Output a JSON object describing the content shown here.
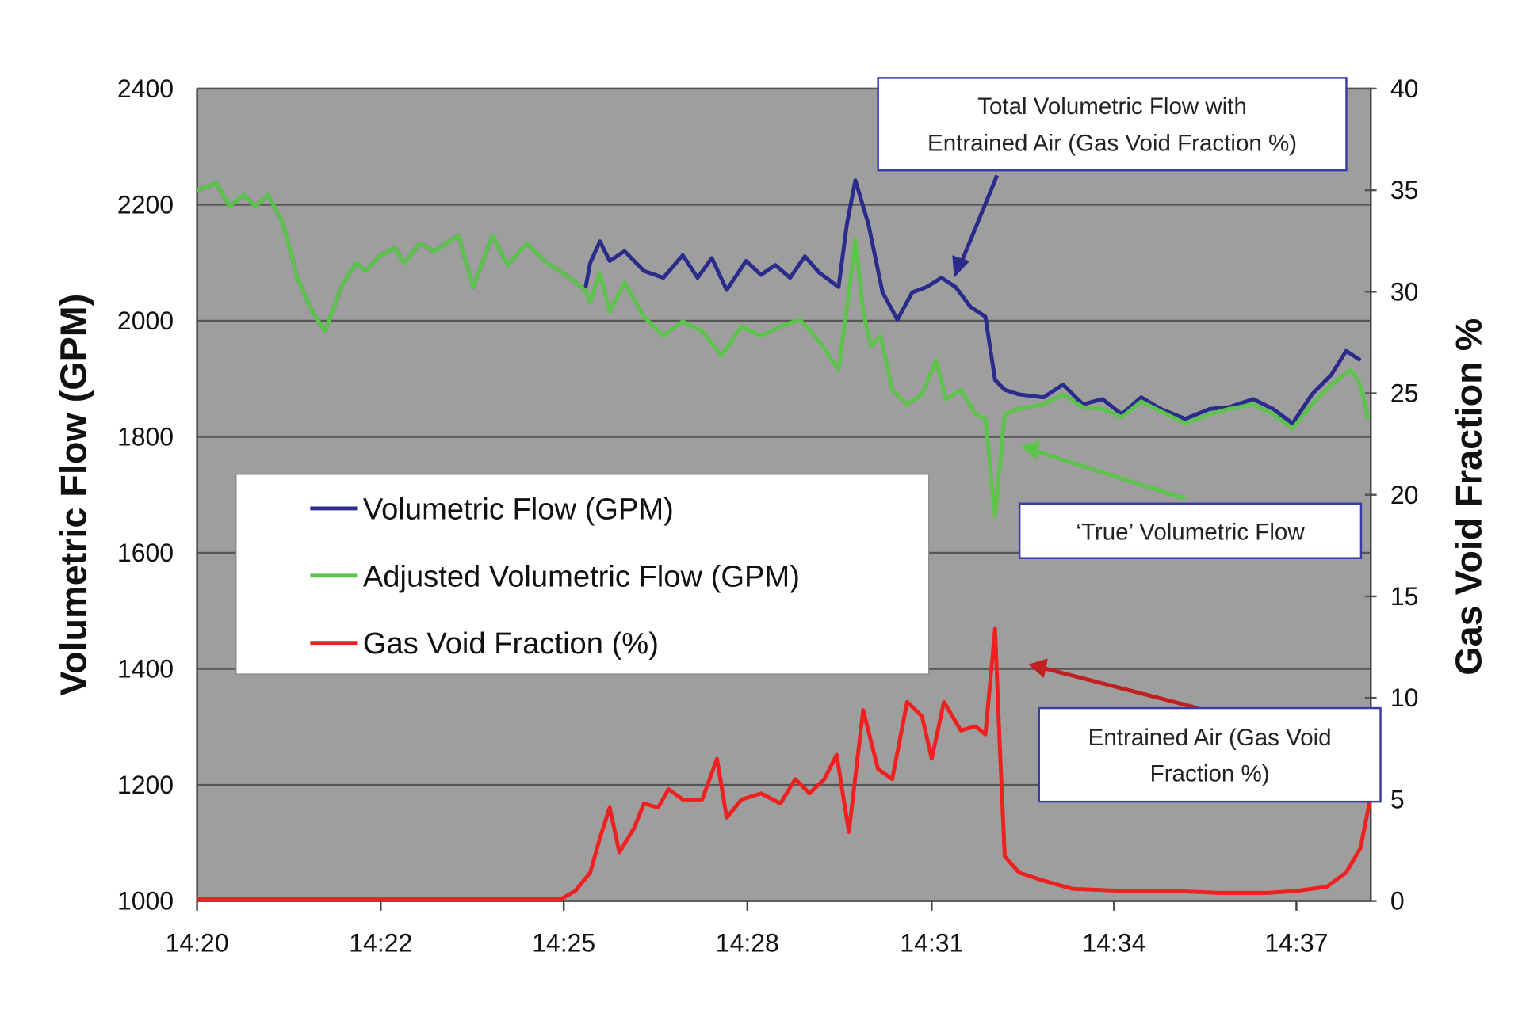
{
  "chart_data": {
    "type": "line",
    "title": "",
    "xlabel": "",
    "ylabel": "Volumetric Flow (GPM)",
    "y2label": "Gas Void Fraction %",
    "x_unit": "minutes after 14:20",
    "xlim": [
      0,
      18.15
    ],
    "ylim": [
      1000,
      2400
    ],
    "y2lim": [
      0,
      40
    ],
    "grid": true,
    "x_ticks": [
      {
        "value": 0,
        "label": "14:20"
      },
      {
        "value": 2.84,
        "label": "14:22"
      },
      {
        "value": 5.67,
        "label": "14:25"
      },
      {
        "value": 8.51,
        "label": "14:28"
      },
      {
        "value": 11.36,
        "label": "14:31"
      },
      {
        "value": 14.18,
        "label": "14:34"
      },
      {
        "value": 17.0,
        "label": "14:37"
      }
    ],
    "y_ticks": [
      "1000",
      "1200",
      "1400",
      "1600",
      "1800",
      "2000",
      "2200",
      "2400"
    ],
    "y2_ticks": [
      "0",
      "5",
      "10",
      "15",
      "20",
      "25",
      "30",
      "35",
      "40"
    ],
    "legend": {
      "placement": "center-left",
      "entries": [
        "Volumetric Flow (GPM)",
        "Adjusted Volumetric Flow (GPM)",
        "Gas Void Fraction (%)"
      ]
    },
    "series": [
      {
        "name": "Volumetric Flow (GPM)",
        "axis": "left",
        "color": "#2b2b8c",
        "points": [
          [
            0,
            2225
          ],
          [
            0.3,
            2237
          ],
          [
            0.5,
            2197
          ],
          [
            0.72,
            2217
          ],
          [
            0.9,
            2197
          ],
          [
            1.1,
            2217
          ],
          [
            1.33,
            2167
          ],
          [
            1.55,
            2074
          ],
          [
            1.78,
            2016
          ],
          [
            1.98,
            1982
          ],
          [
            2.23,
            2058
          ],
          [
            2.46,
            2100
          ],
          [
            2.61,
            2086
          ],
          [
            2.84,
            2113
          ],
          [
            3.06,
            2125
          ],
          [
            3.21,
            2100
          ],
          [
            3.44,
            2133
          ],
          [
            3.67,
            2120
          ],
          [
            4.04,
            2147
          ],
          [
            4.27,
            2058
          ],
          [
            4.57,
            2147
          ],
          [
            4.8,
            2096
          ],
          [
            5.1,
            2133
          ],
          [
            5.4,
            2100
          ],
          [
            5.7,
            2079
          ],
          [
            6.0,
            2053
          ],
          [
            6.08,
            2100
          ],
          [
            6.23,
            2137
          ],
          [
            6.38,
            2103
          ],
          [
            6.61,
            2120
          ],
          [
            6.91,
            2086
          ],
          [
            7.21,
            2074
          ],
          [
            7.51,
            2113
          ],
          [
            7.74,
            2074
          ],
          [
            7.96,
            2108
          ],
          [
            8.19,
            2053
          ],
          [
            8.49,
            2103
          ],
          [
            8.72,
            2079
          ],
          [
            8.94,
            2096
          ],
          [
            9.17,
            2074
          ],
          [
            9.4,
            2111
          ],
          [
            9.62,
            2083
          ],
          [
            9.92,
            2058
          ],
          [
            10.05,
            2167
          ],
          [
            10.18,
            2242
          ],
          [
            10.38,
            2167
          ],
          [
            10.6,
            2049
          ],
          [
            10.83,
            2002
          ],
          [
            11.06,
            2049
          ],
          [
            11.28,
            2058
          ],
          [
            11.51,
            2074
          ],
          [
            11.73,
            2058
          ],
          [
            11.96,
            2024
          ],
          [
            12.19,
            2007
          ],
          [
            12.34,
            1898
          ],
          [
            12.49,
            1881
          ],
          [
            12.71,
            1873
          ],
          [
            13.09,
            1868
          ],
          [
            13.39,
            1890
          ],
          [
            13.7,
            1856
          ],
          [
            14.0,
            1865
          ],
          [
            14.3,
            1839
          ],
          [
            14.6,
            1868
          ],
          [
            14.9,
            1848
          ],
          [
            15.28,
            1831
          ],
          [
            15.66,
            1848
          ],
          [
            15.96,
            1851
          ],
          [
            16.33,
            1865
          ],
          [
            16.64,
            1848
          ],
          [
            16.94,
            1823
          ],
          [
            17.24,
            1873
          ],
          [
            17.54,
            1907
          ],
          [
            17.77,
            1948
          ],
          [
            17.99,
            1932
          ]
        ]
      },
      {
        "name": "Adjusted Volumetric Flow (GPM)",
        "axis": "left",
        "color": "#5cc44a",
        "points": [
          [
            0,
            2225
          ],
          [
            0.3,
            2237
          ],
          [
            0.5,
            2197
          ],
          [
            0.72,
            2217
          ],
          [
            0.9,
            2197
          ],
          [
            1.1,
            2217
          ],
          [
            1.33,
            2167
          ],
          [
            1.55,
            2074
          ],
          [
            1.78,
            2016
          ],
          [
            1.98,
            1982
          ],
          [
            2.23,
            2058
          ],
          [
            2.46,
            2100
          ],
          [
            2.61,
            2086
          ],
          [
            2.84,
            2113
          ],
          [
            3.06,
            2125
          ],
          [
            3.21,
            2100
          ],
          [
            3.44,
            2133
          ],
          [
            3.67,
            2120
          ],
          [
            4.04,
            2147
          ],
          [
            4.27,
            2058
          ],
          [
            4.57,
            2147
          ],
          [
            4.8,
            2096
          ],
          [
            5.1,
            2133
          ],
          [
            5.4,
            2100
          ],
          [
            5.7,
            2079
          ],
          [
            6.0,
            2053
          ],
          [
            6.08,
            2032
          ],
          [
            6.23,
            2083
          ],
          [
            6.38,
            2016
          ],
          [
            6.61,
            2066
          ],
          [
            6.91,
            2007
          ],
          [
            7.21,
            1974
          ],
          [
            7.51,
            1999
          ],
          [
            7.81,
            1982
          ],
          [
            8.11,
            1940
          ],
          [
            8.42,
            1990
          ],
          [
            8.72,
            1974
          ],
          [
            9.02,
            1990
          ],
          [
            9.32,
            2002
          ],
          [
            9.62,
            1965
          ],
          [
            9.92,
            1915
          ],
          [
            10.08,
            2049
          ],
          [
            10.18,
            2141
          ],
          [
            10.3,
            2016
          ],
          [
            10.42,
            1957
          ],
          [
            10.57,
            1974
          ],
          [
            10.75,
            1881
          ],
          [
            10.98,
            1856
          ],
          [
            11.21,
            1873
          ],
          [
            11.43,
            1932
          ],
          [
            11.58,
            1865
          ],
          [
            11.81,
            1881
          ],
          [
            12.04,
            1839
          ],
          [
            12.19,
            1831
          ],
          [
            12.34,
            1663
          ],
          [
            12.49,
            1839
          ],
          [
            12.71,
            1848
          ],
          [
            13.09,
            1856
          ],
          [
            13.39,
            1873
          ],
          [
            13.7,
            1851
          ],
          [
            14.0,
            1848
          ],
          [
            14.3,
            1834
          ],
          [
            14.6,
            1861
          ],
          [
            14.9,
            1844
          ],
          [
            15.28,
            1823
          ],
          [
            15.66,
            1839
          ],
          [
            15.96,
            1848
          ],
          [
            16.33,
            1856
          ],
          [
            16.64,
            1839
          ],
          [
            16.94,
            1814
          ],
          [
            17.24,
            1856
          ],
          [
            17.54,
            1890
          ],
          [
            17.84,
            1915
          ],
          [
            17.99,
            1890
          ],
          [
            18.11,
            1831
          ]
        ]
      },
      {
        "name": "Gas Void Fraction (%)",
        "axis": "right",
        "color": "#ee2020",
        "points": [
          [
            0,
            0.1
          ],
          [
            5.63,
            0.1
          ],
          [
            5.85,
            0.5
          ],
          [
            6.08,
            1.4
          ],
          [
            6.23,
            3.1
          ],
          [
            6.38,
            4.6
          ],
          [
            6.53,
            2.4
          ],
          [
            6.76,
            3.6
          ],
          [
            6.91,
            4.8
          ],
          [
            7.13,
            4.6
          ],
          [
            7.29,
            5.5
          ],
          [
            7.51,
            5.0
          ],
          [
            7.81,
            5.0
          ],
          [
            8.04,
            7.0
          ],
          [
            8.19,
            4.1
          ],
          [
            8.42,
            5.0
          ],
          [
            8.72,
            5.3
          ],
          [
            9.02,
            4.8
          ],
          [
            9.25,
            6.0
          ],
          [
            9.47,
            5.3
          ],
          [
            9.7,
            6.0
          ],
          [
            9.89,
            7.2
          ],
          [
            10.08,
            3.4
          ],
          [
            10.3,
            9.4
          ],
          [
            10.53,
            6.5
          ],
          [
            10.75,
            6.0
          ],
          [
            10.98,
            9.8
          ],
          [
            11.21,
            9.1
          ],
          [
            11.36,
            7.0
          ],
          [
            11.55,
            9.8
          ],
          [
            11.81,
            8.4
          ],
          [
            12.04,
            8.6
          ],
          [
            12.19,
            8.2
          ],
          [
            12.34,
            13.4
          ],
          [
            12.41,
            7.9
          ],
          [
            12.49,
            2.2
          ],
          [
            12.71,
            1.4
          ],
          [
            13.09,
            1.0
          ],
          [
            13.54,
            0.6
          ],
          [
            14.3,
            0.5
          ],
          [
            15.05,
            0.5
          ],
          [
            15.81,
            0.4
          ],
          [
            16.56,
            0.4
          ],
          [
            17.01,
            0.5
          ],
          [
            17.47,
            0.7
          ],
          [
            17.77,
            1.4
          ],
          [
            17.99,
            2.6
          ],
          [
            18.14,
            5.0
          ]
        ]
      }
    ],
    "annotations": [
      {
        "lines": [
          "Total Volumetric Flow with",
          "Entrained Air (Gas Void Fraction %)"
        ],
        "color": "#2b2b8c"
      },
      {
        "lines": [
          "‘True’ Volumetric Flow"
        ],
        "color": "#5cc44a"
      },
      {
        "lines": [
          "Entrained Air (Gas Void",
          "Fraction %)"
        ],
        "color": "#c02020"
      }
    ]
  }
}
